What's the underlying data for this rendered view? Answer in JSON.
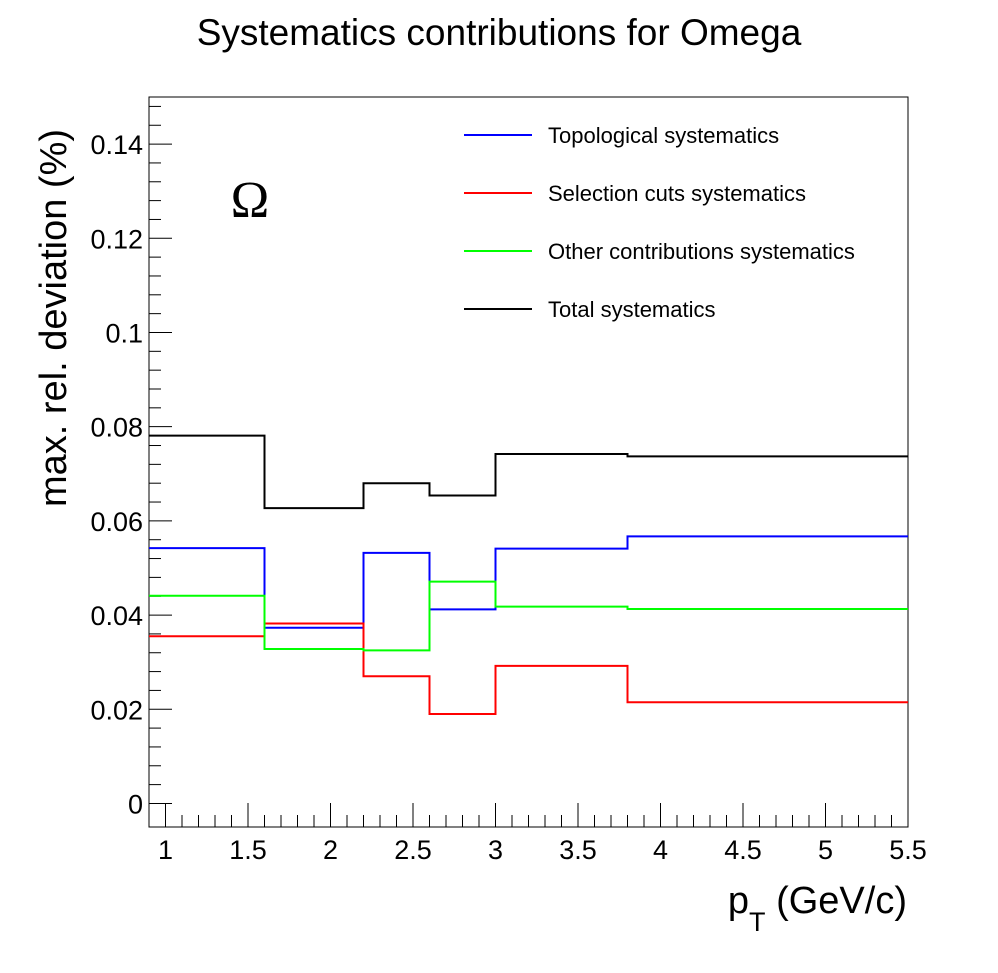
{
  "chart_data": {
    "type": "line",
    "step": true,
    "title": "Systematics contributions for Omega",
    "annotation": "Ω",
    "xlabel": {
      "main": "p",
      "subscript": "T",
      "rest": " (GeV/c)"
    },
    "ylabel": "max. rel. deviation (%)",
    "xlim": [
      0.9,
      5.5
    ],
    "ylim": [
      -0.005,
      0.15
    ],
    "x_ticks": [
      1,
      1.5,
      2,
      2.5,
      3,
      3.5,
      4,
      4.5,
      5,
      5.5
    ],
    "x_tick_labels": [
      "1",
      "1.5",
      "2",
      "2.5",
      "3",
      "3.5",
      "4",
      "4.5",
      "5",
      "5.5"
    ],
    "y_ticks": [
      0,
      0.02,
      0.04,
      0.06,
      0.08,
      0.1,
      0.12,
      0.14
    ],
    "y_tick_labels": [
      "0",
      "0.02",
      "0.04",
      "0.06",
      "0.08",
      "0.1",
      "0.12",
      "0.14"
    ],
    "bin_edges": [
      0.9,
      1.6,
      2.2,
      2.6,
      3.0,
      3.8,
      5.5
    ],
    "legend_position": "top-right",
    "grid": false,
    "series": [
      {
        "name": "Topological systematics",
        "color": "#0000ff",
        "values": [
          0.0542,
          0.0373,
          0.0532,
          0.0412,
          0.0541,
          0.0567
        ]
      },
      {
        "name": "Selection cuts systematics",
        "color": "#ff0000",
        "values": [
          0.0355,
          0.0382,
          0.027,
          0.019,
          0.0292,
          0.0215
        ]
      },
      {
        "name": "Other contributions systematics",
        "color": "#00ff00",
        "values": [
          0.0441,
          0.0328,
          0.0325,
          0.0471,
          0.0418,
          0.0413
        ]
      },
      {
        "name": "Total systematics",
        "color": "#000000",
        "values": [
          0.0781,
          0.0627,
          0.068,
          0.0654,
          0.0742,
          0.0737
        ]
      }
    ]
  }
}
